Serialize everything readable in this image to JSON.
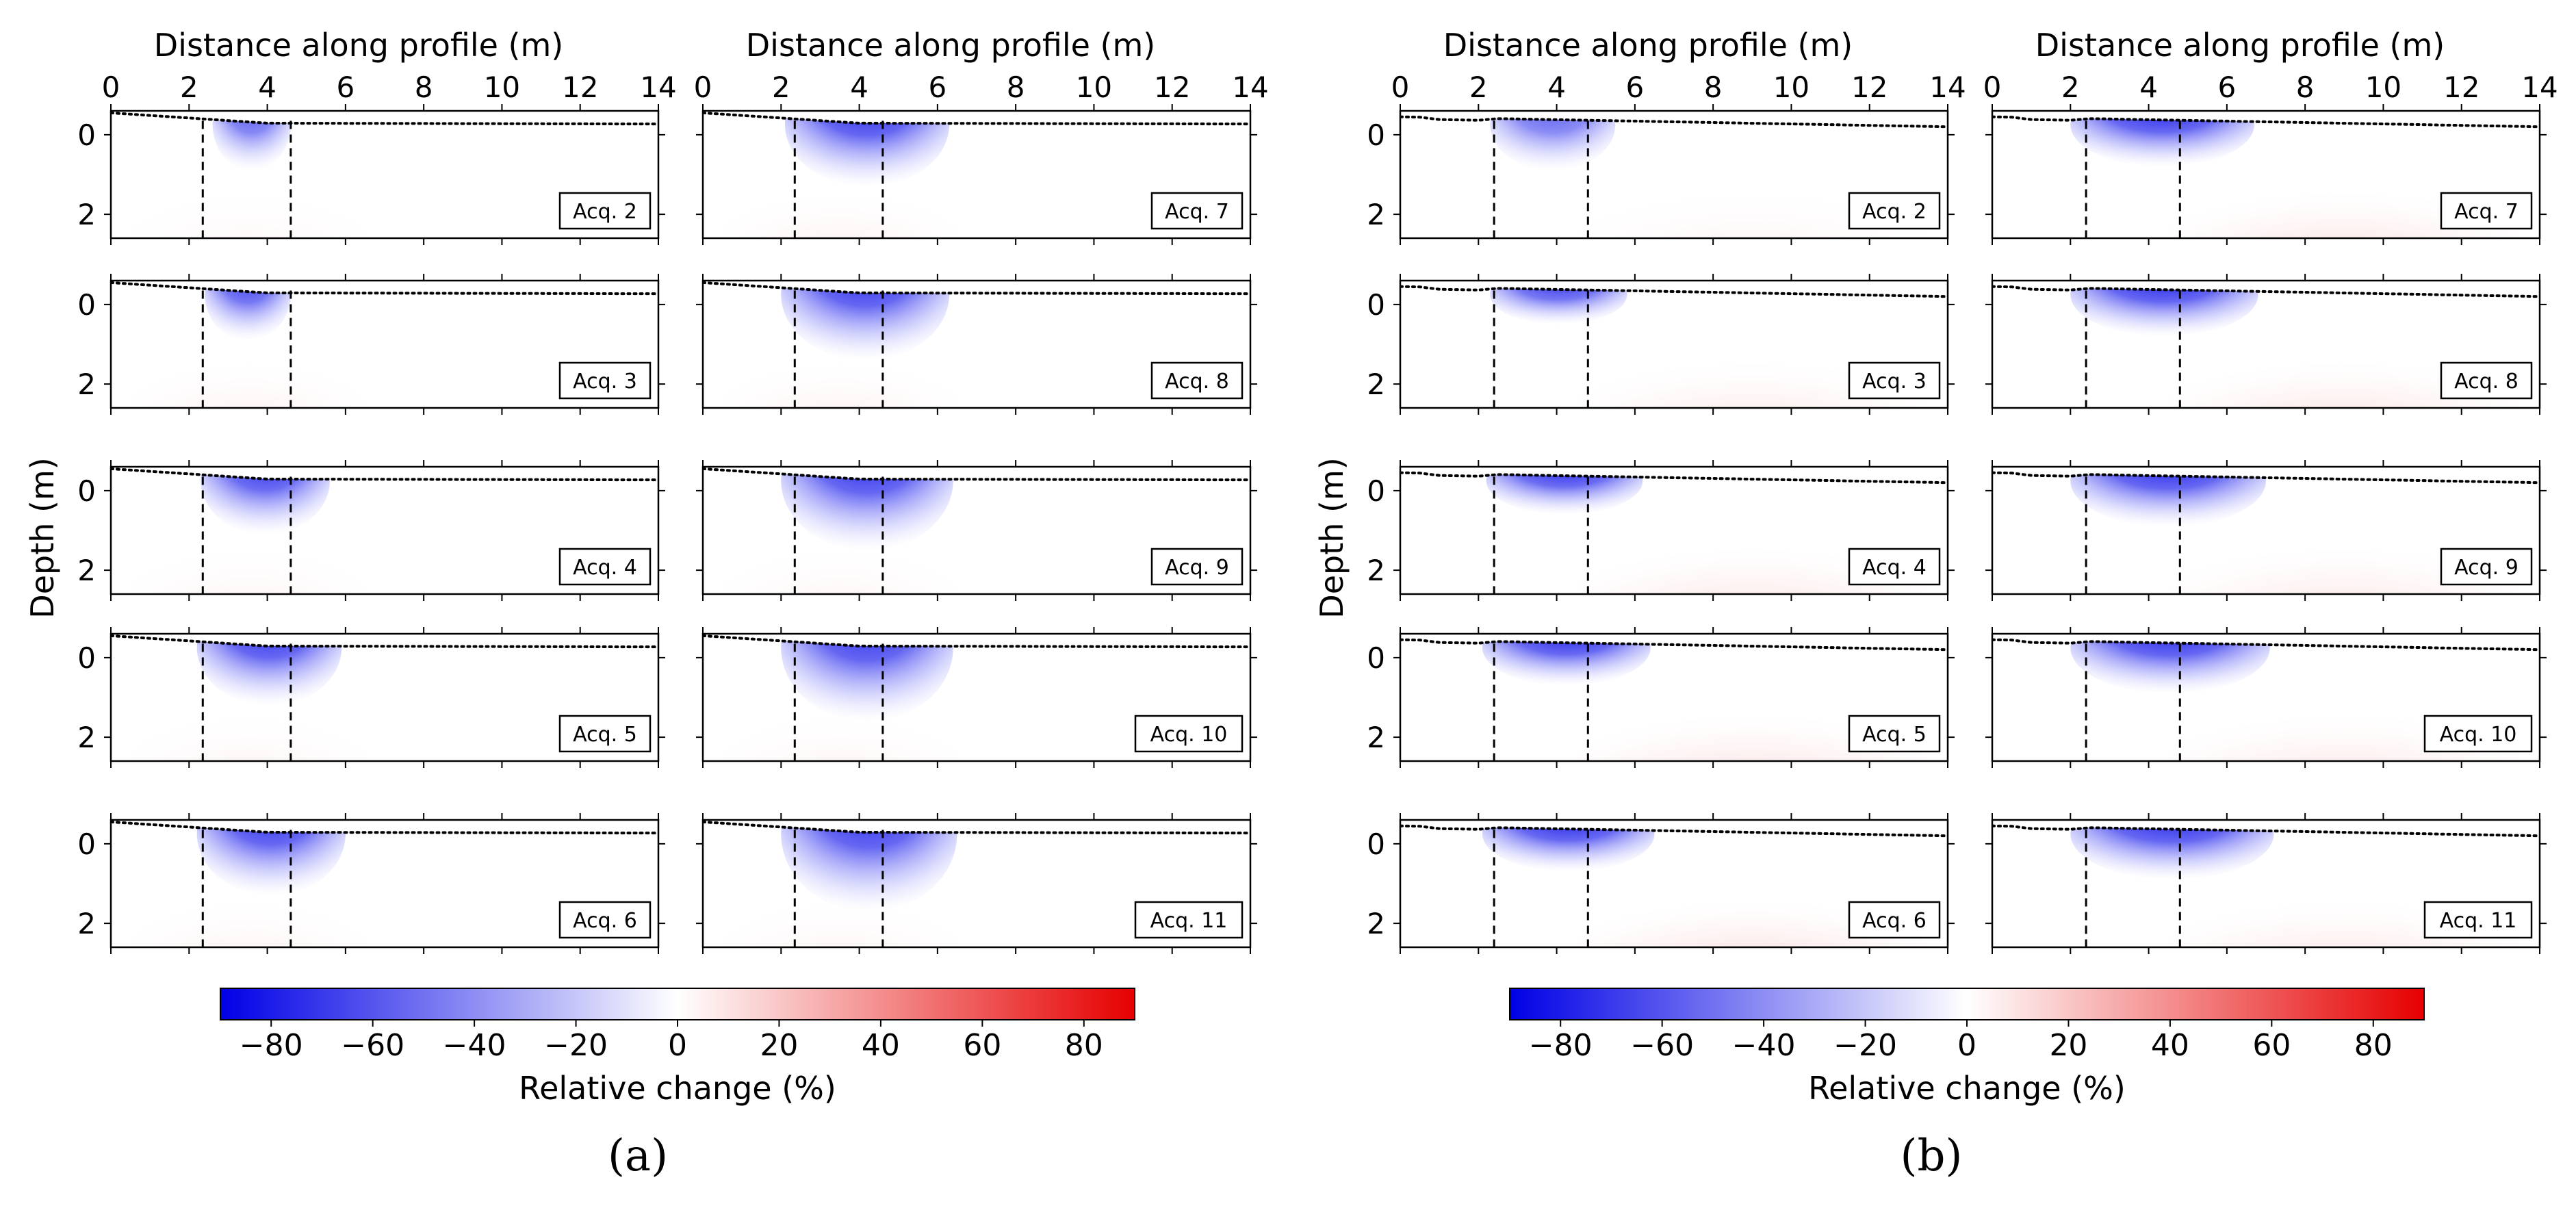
{
  "chart_data": [
    {
      "type": "heatmap",
      "panel": "(a)",
      "xlabel": "Distance along profile (m)",
      "ylabel": "Depth (m)",
      "xlim": [
        0,
        14
      ],
      "ylim": [
        2.6,
        -0.6
      ],
      "xticks": [
        "0",
        "2",
        "4",
        "6",
        "8",
        "10",
        "12",
        "14"
      ],
      "yticks": [
        "0",
        "2"
      ],
      "grid": false,
      "boundary_lines_x": [
        2.35,
        4.6
      ],
      "colorbar": {
        "label": "Relative change (%)",
        "range": [
          -90,
          90
        ],
        "ticks": [
          "−80",
          "−60",
          "−40",
          "−20",
          "0",
          "20",
          "40",
          "60",
          "80"
        ],
        "colors": [
          "#0000e6",
          "#ffffff",
          "#e60000"
        ]
      },
      "subplots": [
        {
          "label": "Acq. 2",
          "neg_x": [
            2.6,
            4.6
          ],
          "neg_depth": 0.9,
          "neg_peak": -60,
          "pos_peak": 2
        },
        {
          "label": "Acq. 3",
          "neg_x": [
            2.4,
            4.6
          ],
          "neg_depth": 0.9,
          "neg_peak": -75,
          "pos_peak": 8
        },
        {
          "label": "Acq. 4",
          "neg_x": [
            2.3,
            5.6
          ],
          "neg_depth": 1.1,
          "neg_peak": -85,
          "pos_peak": 4
        },
        {
          "label": "Acq. 5",
          "neg_x": [
            2.2,
            5.9
          ],
          "neg_depth": 1.2,
          "neg_peak": -88,
          "pos_peak": 4
        },
        {
          "label": "Acq. 6",
          "neg_x": [
            2.2,
            6.0
          ],
          "neg_depth": 1.3,
          "neg_peak": -88,
          "pos_peak": 6
        },
        {
          "label": "Acq. 7",
          "neg_x": [
            2.1,
            6.3
          ],
          "neg_depth": 1.3,
          "neg_peak": -90,
          "pos_peak": 8
        },
        {
          "label": "Acq. 8",
          "neg_x": [
            2.0,
            6.3
          ],
          "neg_depth": 1.4,
          "neg_peak": -90,
          "pos_peak": 8
        },
        {
          "label": "Acq. 9",
          "neg_x": [
            2.0,
            6.4
          ],
          "neg_depth": 1.5,
          "neg_peak": -90,
          "pos_peak": 4
        },
        {
          "label": "Acq. 10",
          "neg_x": [
            2.0,
            6.4
          ],
          "neg_depth": 1.6,
          "neg_peak": -90,
          "pos_peak": 4
        },
        {
          "label": "Acq. 11",
          "neg_x": [
            2.0,
            6.5
          ],
          "neg_depth": 1.7,
          "neg_peak": -90,
          "pos_peak": 4
        }
      ]
    },
    {
      "type": "heatmap",
      "panel": "(b)",
      "xlabel": "Distance along profile (m)",
      "ylabel": "Depth (m)",
      "xlim": [
        0,
        14
      ],
      "ylim": [
        2.6,
        -0.6
      ],
      "xticks": [
        "0",
        "2",
        "4",
        "6",
        "8",
        "10",
        "12",
        "14"
      ],
      "yticks": [
        "0",
        "2"
      ],
      "grid": false,
      "boundary_lines_x": [
        2.4,
        4.8
      ],
      "colorbar": {
        "label": "Relative change (%)",
        "range": [
          -90,
          90
        ],
        "ticks": [
          "−80",
          "−60",
          "−40",
          "−20",
          "0",
          "20",
          "40",
          "60",
          "80"
        ],
        "colors": [
          "#0000e6",
          "#ffffff",
          "#e60000"
        ]
      },
      "subplots": [
        {
          "label": "Acq. 2",
          "neg_x": [
            2.3,
            5.5
          ],
          "neg_depth": 0.9,
          "neg_peak": -55,
          "pos_peak": 4
        },
        {
          "label": "Acq. 3",
          "neg_x": [
            2.3,
            5.8
          ],
          "neg_depth": 0.5,
          "neg_peak": -75,
          "pos_peak": 15
        },
        {
          "label": "Acq. 4",
          "neg_x": [
            2.2,
            6.2
          ],
          "neg_depth": 0.6,
          "neg_peak": -85,
          "pos_peak": 20
        },
        {
          "label": "Acq. 5",
          "neg_x": [
            2.1,
            6.4
          ],
          "neg_depth": 0.7,
          "neg_peak": -88,
          "pos_peak": 22
        },
        {
          "label": "Acq. 6",
          "neg_x": [
            2.1,
            6.5
          ],
          "neg_depth": 0.7,
          "neg_peak": -88,
          "pos_peak": 25
        },
        {
          "label": "Acq. 7",
          "neg_x": [
            2.0,
            6.7
          ],
          "neg_depth": 0.8,
          "neg_peak": -88,
          "pos_peak": 22
        },
        {
          "label": "Acq. 8",
          "neg_x": [
            2.0,
            6.8
          ],
          "neg_depth": 0.8,
          "neg_peak": -90,
          "pos_peak": 22
        },
        {
          "label": "Acq. 9",
          "neg_x": [
            2.0,
            7.0
          ],
          "neg_depth": 0.9,
          "neg_peak": -90,
          "pos_peak": 18
        },
        {
          "label": "Acq. 10",
          "neg_x": [
            2.0,
            7.1
          ],
          "neg_depth": 0.9,
          "neg_peak": -90,
          "pos_peak": 18
        },
        {
          "label": "Acq. 11",
          "neg_x": [
            2.0,
            7.2
          ],
          "neg_depth": 0.9,
          "neg_peak": -90,
          "pos_peak": 18
        }
      ]
    }
  ]
}
